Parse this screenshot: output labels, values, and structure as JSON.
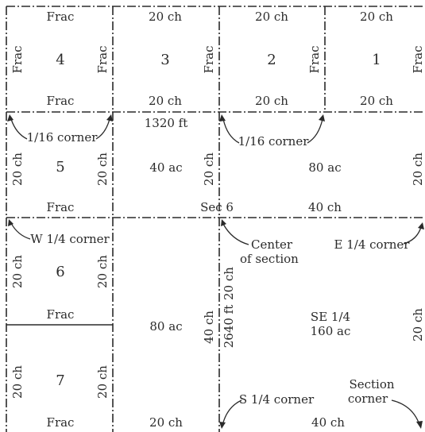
{
  "labels": {
    "frac": "Frac",
    "ch20": "20 ch",
    "ch40": "40 ch",
    "ft1320": "1320 ft",
    "ft2640": "2640 ft",
    "ac40": "40 ac",
    "ac80": "80 ac",
    "ac160": "160 ac",
    "sec6": "Sec 6",
    "se14": "SE 1/4",
    "corner116": "1/16 corner",
    "w14": "W 1/4 corner",
    "e14": "E 1/4 corner",
    "center1": "Center",
    "center2": "of section",
    "s14": "S 1/4 corner",
    "section1": "Section",
    "section2": "corner"
  },
  "lots": [
    "4",
    "3",
    "2",
    "1",
    "5",
    "6",
    "7"
  ]
}
